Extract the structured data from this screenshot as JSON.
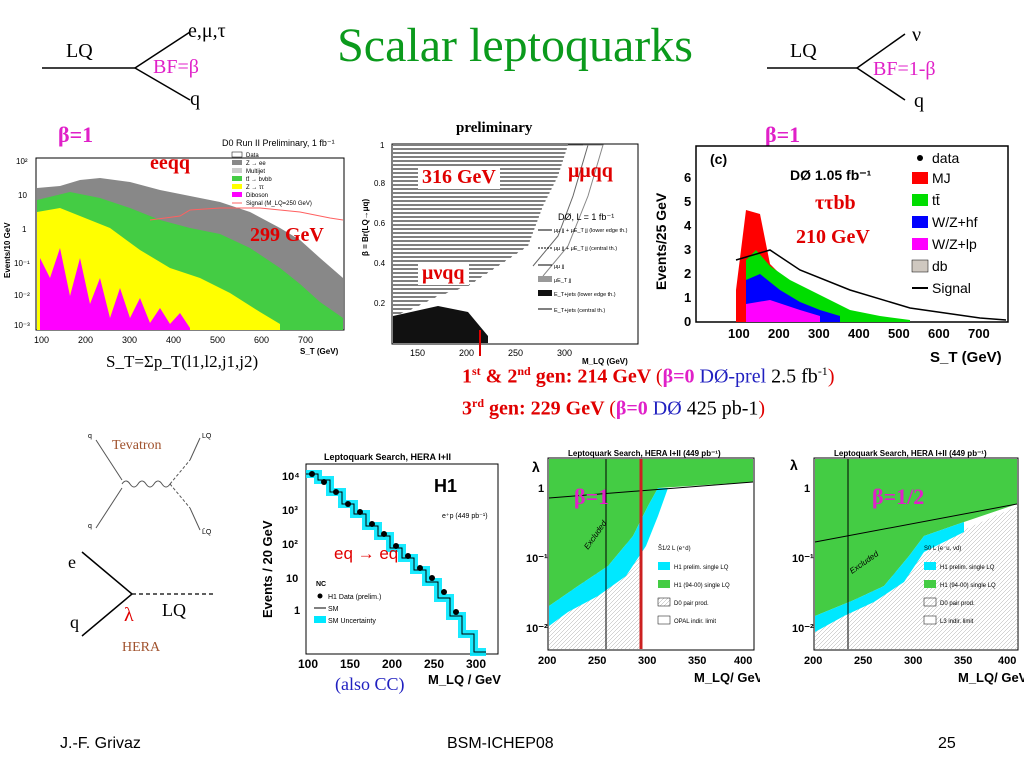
{
  "slide": {
    "title": "Scalar leptoquarks",
    "footer_left": "J.-F. Grivaz",
    "footer_center": "BSM-ICHEP08",
    "footer_right": "25"
  },
  "decay_left": {
    "lq": "LQ",
    "top": "e,μ,τ",
    "bf": "BF=β",
    "bottom": "q"
  },
  "decay_right": {
    "lq": "LQ",
    "top": "ν",
    "bf": "BF=1-β",
    "bottom": "q"
  },
  "plot1": {
    "beta_label": "β=1",
    "channel": "eeqq",
    "limit": "299 GeV",
    "header": "D0 Run II Preliminary, 1 fb⁻¹",
    "ylabel": "Events/10 GeV",
    "xlabel": "S_T (GeV)",
    "legend": [
      "Data",
      "Z → ee",
      "Multijet",
      "tt̄ → bνbb",
      "Z → ττ",
      "Diboson",
      "Signal (M_LQ=250 GeV)"
    ],
    "xticks": [
      "100",
      "200",
      "300",
      "400",
      "500",
      "600",
      "700"
    ],
    "yticks": [
      "10²",
      "10",
      "1",
      "10⁻¹",
      "10⁻²",
      "10⁻³"
    ],
    "caption": "S_T=Σp_T(l1,l2,j1,j2)"
  },
  "plot2": {
    "header": "preliminary",
    "mass1": "316 GeV",
    "channel1": "μμqq",
    "channel2": "μνqq",
    "lumi": "DØ, L = 1 fb⁻¹",
    "ylabel": "β = Br(LQ→μq)",
    "xlabel": "M_LQ (GeV)",
    "xticks": [
      "150",
      "200",
      "250",
      "300"
    ],
    "yticks": [
      "0.2",
      "0.4",
      "0.6",
      "0.8",
      "1"
    ],
    "legend": [
      "μμ jj + μE_T jj (lower edge th.)",
      "μμ jj + μE_T jj (central th.)",
      "μμ jj",
      "μE_T jj",
      "E_T+jets (lower edge th.)",
      "E_T+jets (central th.)"
    ]
  },
  "plot3": {
    "beta_label": "β=1",
    "panel": "(c)",
    "lumi": "DØ 1.05 fb⁻¹",
    "channel": "ττbb",
    "limit": "210 GeV",
    "ylabel": "Events/25 GeV",
    "xlabel": "S_T (GeV)",
    "legend": [
      "data",
      "MJ",
      "tt̄",
      "W/Z+hf",
      "W/Z+lp",
      "db",
      "Signal"
    ],
    "xticks": [
      "100",
      "200",
      "300",
      "400",
      "500",
      "600",
      "700"
    ],
    "yticks": [
      "0",
      "1",
      "2",
      "3",
      "4",
      "5",
      "6"
    ]
  },
  "results": {
    "line1_gen": "1",
    "line1_st": "st",
    "line1_amp": "& 2",
    "line1_nd": "nd",
    "line1_main": "gen: 214 GeV",
    "line1_beta": "β=0",
    "line1_exp": "DØ-prel",
    "line1_lumi": "2.5 fb",
    "line1_lumi_exp": "-1",
    "line2_gen": "3",
    "line2_rd": "rd",
    "line2_main": "gen: 229 GeV",
    "line2_beta": "β=0",
    "line2_exp": "DØ",
    "line2_lumi": "425 pb-1",
    "paren_open": "(",
    "paren_close": ")"
  },
  "diagrams": {
    "tevatron": "Tevatron",
    "hera": "HERA",
    "e": "e",
    "q": "q",
    "lambda": "λ",
    "lq": "LQ",
    "feyn_q1": "q",
    "feyn_q2": "q",
    "feyn_lq1": "LQ",
    "feyn_lq2": "L̄Q"
  },
  "plot4": {
    "header": "Leptoquark Search, HERA I+II",
    "exp": "H1",
    "lumi": "e⁺p (449 pb⁻¹)",
    "channel": "eq → eq",
    "ylabel": "Events / 20 GeV",
    "xlabel": "M_LQ / GeV",
    "legend_title": "NC",
    "legend": [
      "H1 Data (prelim.)",
      "SM",
      "SM Uncertainty"
    ],
    "xticks": [
      "100",
      "150",
      "200",
      "250",
      "300"
    ],
    "yticks": [
      "10⁴",
      "10³",
      "10²",
      "10",
      "1"
    ],
    "caption": "(also CC)"
  },
  "plot5": {
    "header": "Leptoquark Search, HERA I+II (449 pb⁻¹)",
    "beta_label": "β=1",
    "excluded": "Excluded",
    "ylabel": "λ",
    "xlabel": "M_LQ/ GeV",
    "legend_title": "S̃1/2 L (e⁺d)",
    "legend": [
      "H1 prelim. single LQ",
      "H1 (94-00) single LQ",
      "D0 pair prod.",
      "OPAL indir. limit"
    ],
    "xticks": [
      "200",
      "250",
      "300",
      "350",
      "400"
    ],
    "yticks": [
      "1",
      "10⁻¹",
      "10⁻²"
    ]
  },
  "plot6": {
    "header": "Leptoquark Search, HERA I+II (449 pb⁻¹)",
    "beta_label": "β=1/2",
    "excluded": "Excluded",
    "ylabel": "λ",
    "xlabel": "M_LQ/ GeV",
    "legend_title": "S0 L (e⁻u, νd)",
    "legend": [
      "H1 prelim. single LQ",
      "H1 (94-00) single LQ",
      "D0 pair prod.",
      "L3 indir. limit"
    ],
    "xticks": [
      "200",
      "250",
      "300",
      "350",
      "400"
    ],
    "yticks": [
      "1",
      "10⁻¹",
      "10⁻²"
    ]
  },
  "colors": {
    "title": "#0b9a1c",
    "red": "#e00000",
    "magenta": "#e020c8",
    "blue": "#2020c0",
    "cyan": "#00e8ff",
    "green": "#33cc33"
  }
}
